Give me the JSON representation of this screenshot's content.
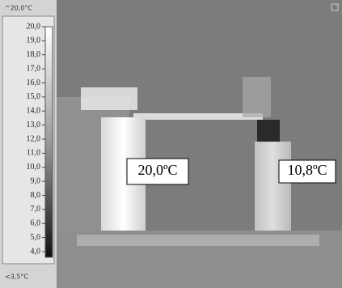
{
  "scale": {
    "max_label": "^20,0°C",
    "min_label": "<3,5°C",
    "labels": [
      "20,0",
      "19,0",
      "18,0",
      "17,0",
      "16,0",
      "15,0",
      "14,0",
      "13,0",
      "12,0",
      "11,0",
      "10,0",
      "9,0",
      "8,0",
      "7,0",
      "6,0",
      "5,0",
      "4,0"
    ]
  },
  "annotations": [
    "20,0ºC",
    "10,8ºC"
  ]
}
